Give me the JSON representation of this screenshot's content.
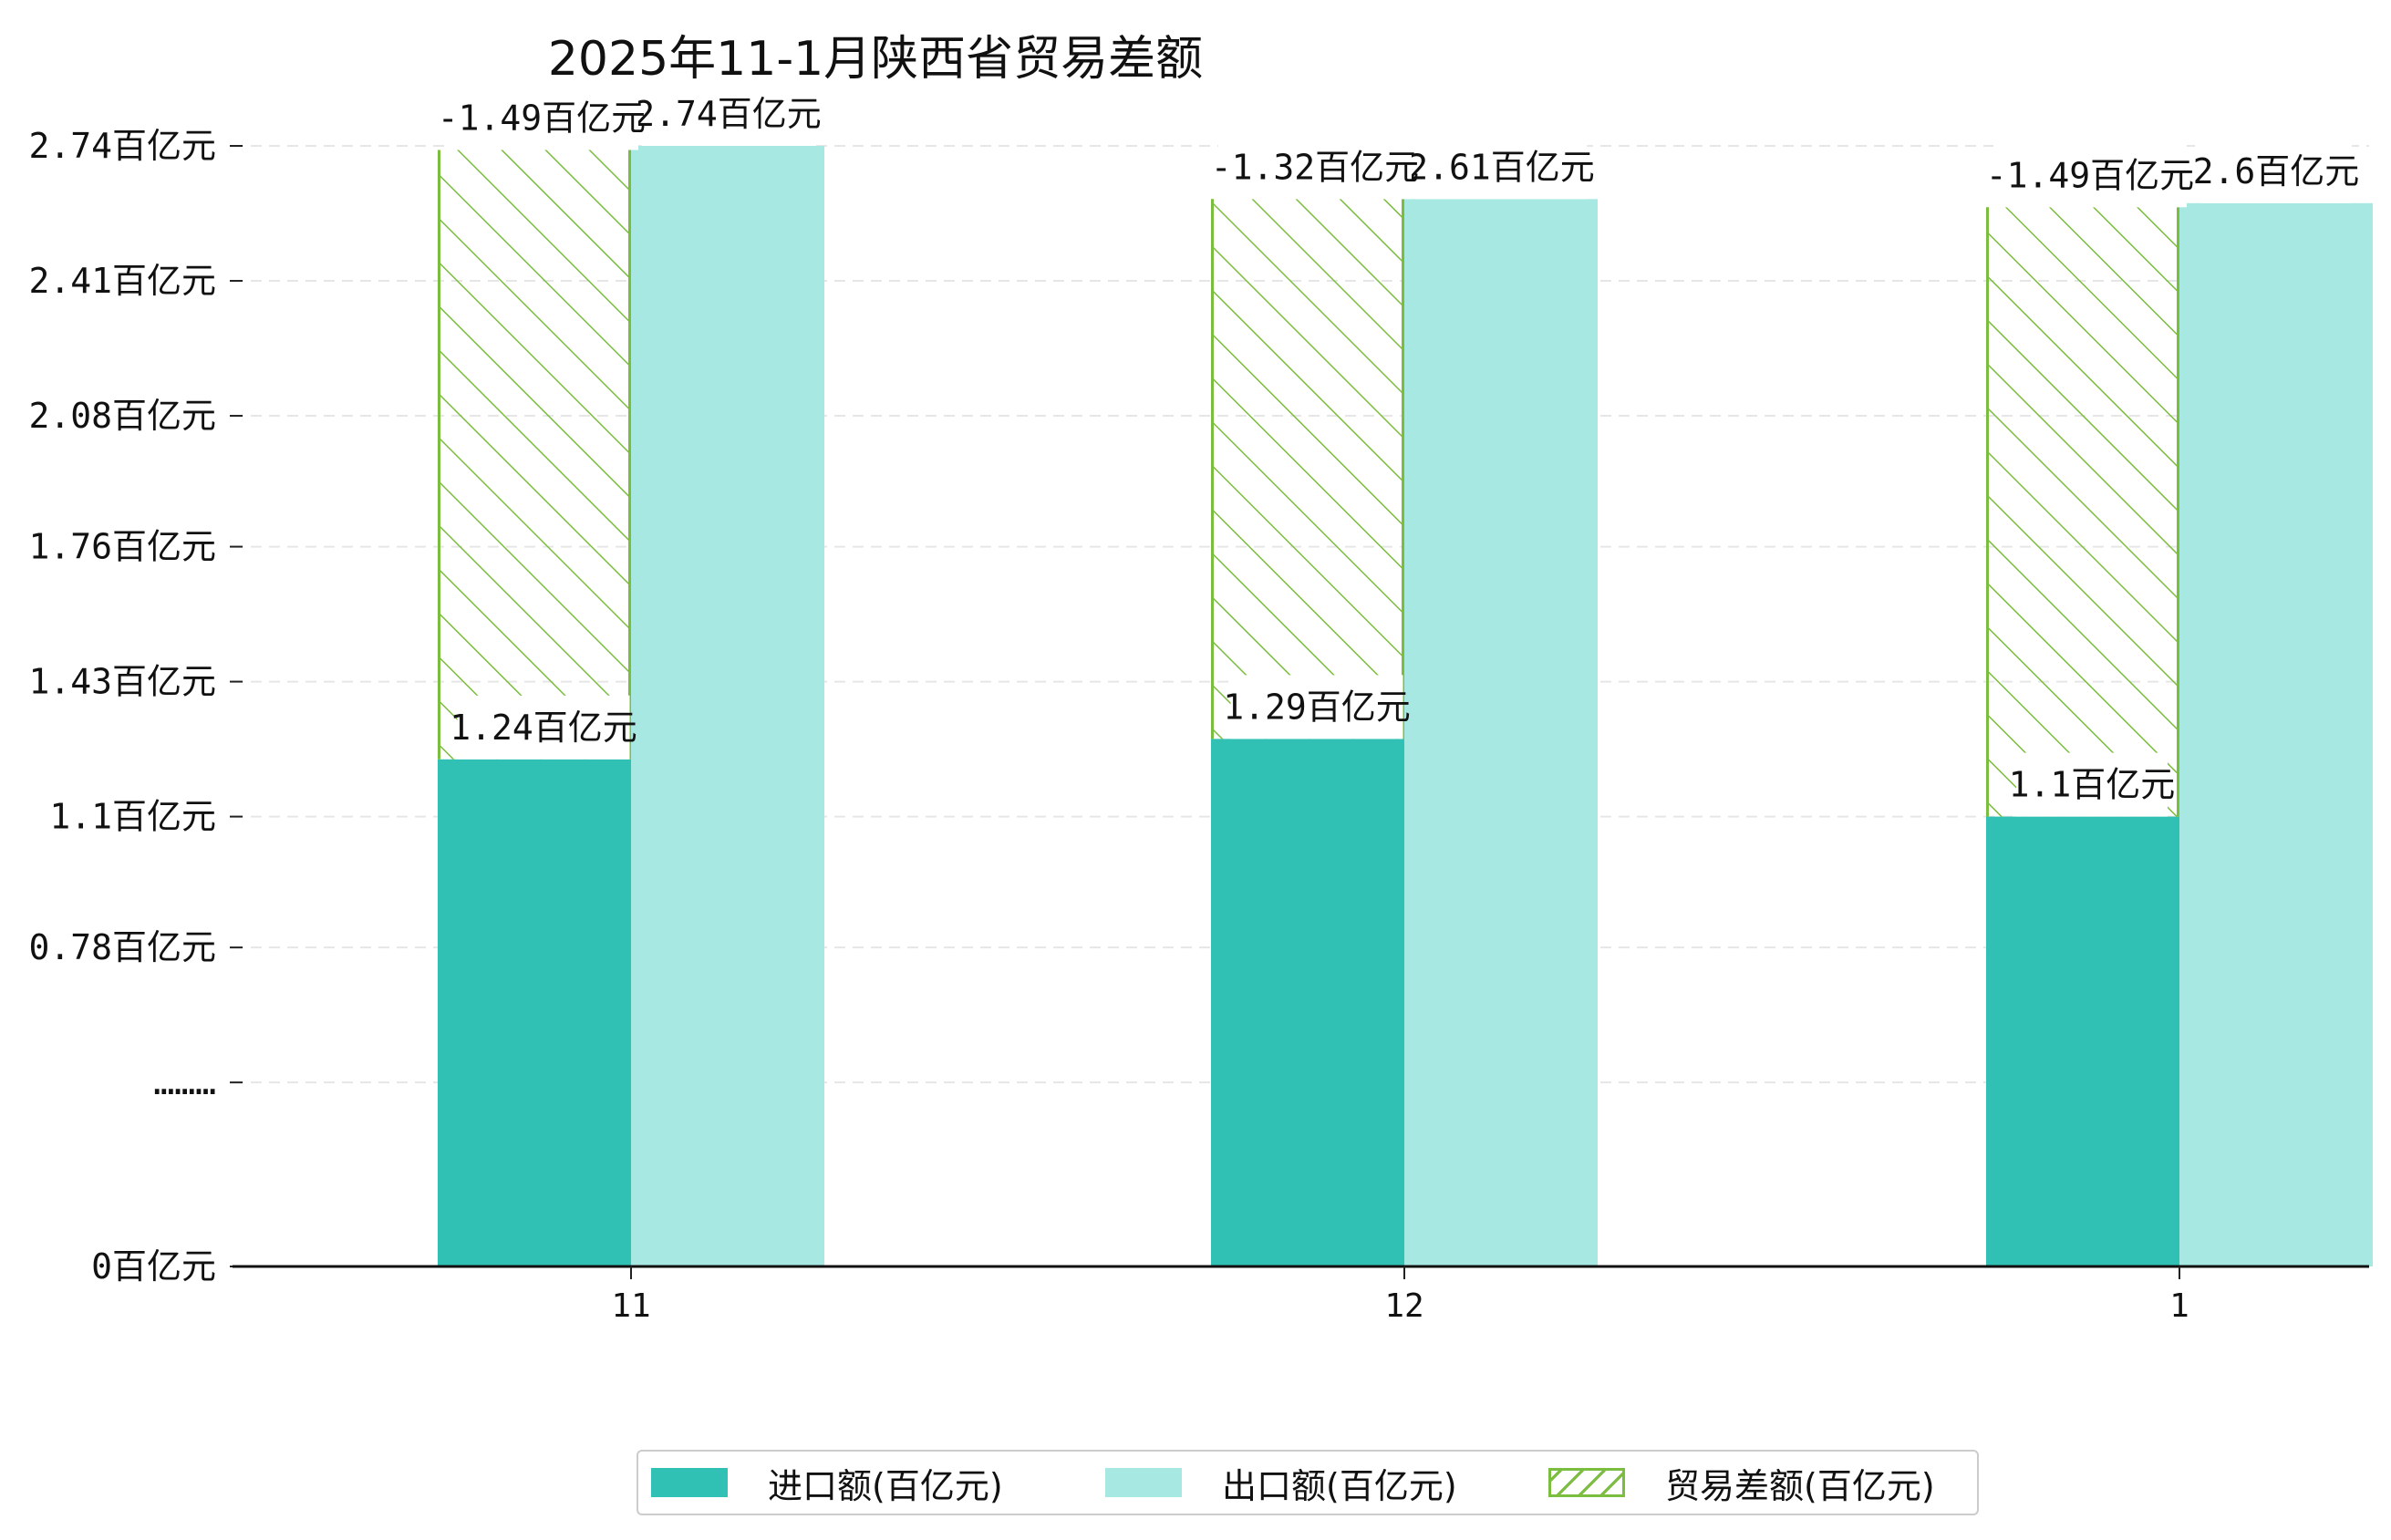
{
  "chart_data": {
    "type": "bar",
    "title": "2025年11-1月陕西省贸易差额",
    "xlabel": "",
    "ylabel": "",
    "categories": [
      "11",
      "12",
      "1"
    ],
    "series": [
      {
        "name": "进口额(百亿元)",
        "values": [
          1.24,
          1.29,
          1.1
        ],
        "color": "#31c0b4",
        "pattern": "solid",
        "labels": [
          "1.24百亿元",
          "1.29百亿元",
          "1.1百亿元"
        ]
      },
      {
        "name": "出口额(百亿元)",
        "values": [
          2.74,
          2.61,
          2.6
        ],
        "color": "#a8e8e3",
        "pattern": "solid",
        "labels": [
          "2.74百亿元",
          "2.61百亿元",
          "2.6百亿元"
        ]
      },
      {
        "name": "贸易差额(百亿元)",
        "values": [
          -1.49,
          -1.32,
          -1.49
        ],
        "color": "#7bbd3f",
        "pattern": "hatch",
        "labels": [
          "-1.49百亿元",
          "-1.32百亿元",
          "-1.49百亿元"
        ]
      }
    ],
    "yticks": [
      {
        "value": 0,
        "label": "0百亿元"
      },
      {
        "value": 0.45,
        "label": "………"
      },
      {
        "value": 0.78,
        "label": "0.78百亿元"
      },
      {
        "value": 1.1,
        "label": "1.1百亿元"
      },
      {
        "value": 1.43,
        "label": "1.43百亿元"
      },
      {
        "value": 1.76,
        "label": "1.76百亿元"
      },
      {
        "value": 2.08,
        "label": "2.08百亿元"
      },
      {
        "value": 2.41,
        "label": "2.41百亿元"
      },
      {
        "value": 2.74,
        "label": "2.74百亿元"
      }
    ],
    "ylim": [
      0,
      2.74
    ],
    "grid": "y-dashed",
    "legend_position": "bottom-center"
  }
}
